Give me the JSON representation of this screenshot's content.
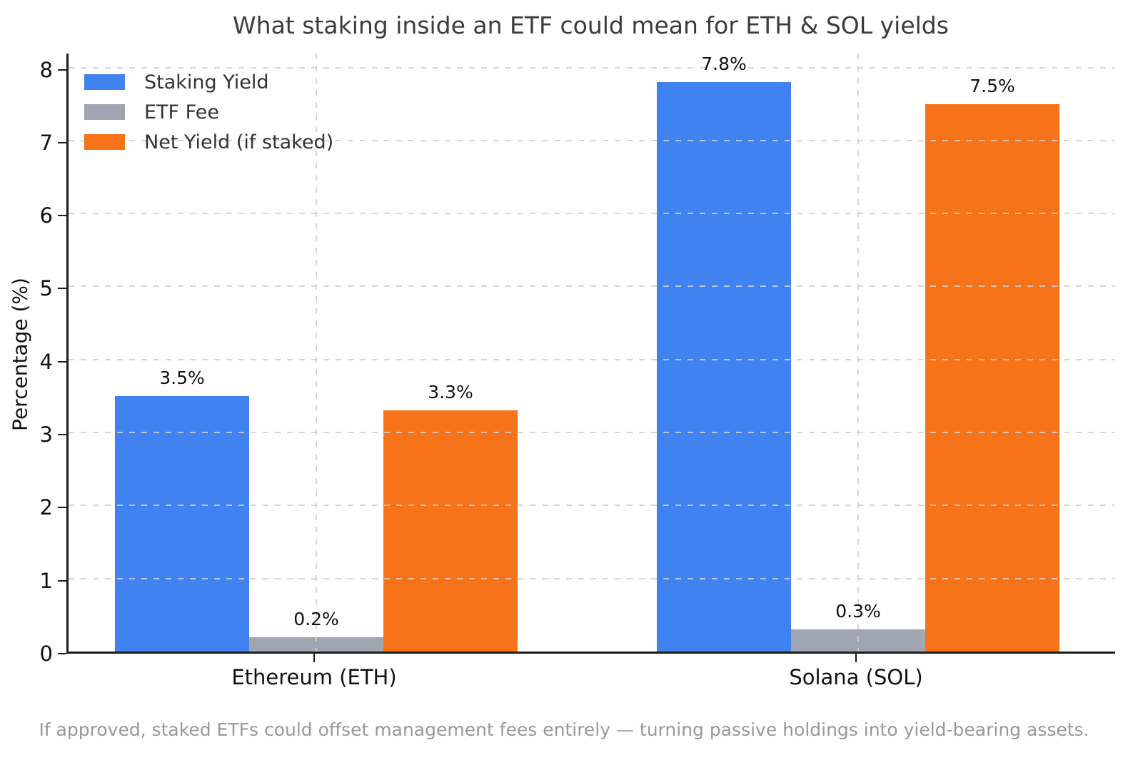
{
  "figure": {
    "caption": "If approved, staked ETFs could offset management fees entirely — turning passive holdings into yield-bearing assets."
  },
  "colors": {
    "staking_yield": "#4083f0",
    "etf_fee": "#9fa6b1",
    "net_yield": "#f7731a",
    "grid": "#cfcfcf",
    "spine": "#1c1c1c",
    "title_text": "#3c3c3c",
    "tick_text": "#111111",
    "legend_text": "#333333",
    "caption_text": "#999999",
    "background": "#ffffff"
  },
  "chart_data": {
    "type": "bar",
    "title": "What staking inside an ETF could mean for ETH & SOL yields",
    "categories": [
      "Ethereum (ETH)",
      "Solana (SOL)"
    ],
    "series": [
      {
        "name": "Staking Yield",
        "color_key": "staking_yield",
        "values": [
          3.5,
          7.8
        ],
        "value_labels": [
          "3.5%",
          "7.8%"
        ]
      },
      {
        "name": "ETF Fee",
        "color_key": "etf_fee",
        "values": [
          0.2,
          0.3
        ],
        "value_labels": [
          "0.2%",
          "0.3%"
        ]
      },
      {
        "name": "Net Yield (if staked)",
        "color_key": "net_yield",
        "values": [
          3.3,
          7.5
        ],
        "value_labels": [
          "3.3%",
          "7.5%"
        ]
      }
    ],
    "xlabel": "",
    "ylabel": "Percentage (%)",
    "ylim": [
      0,
      8.22
    ],
    "yticks": [
      0,
      1,
      2,
      3,
      4,
      5,
      6,
      7,
      8
    ],
    "grid": true,
    "grid_style": "dashed",
    "legend_position": "upper-left",
    "legend_frame": false
  }
}
